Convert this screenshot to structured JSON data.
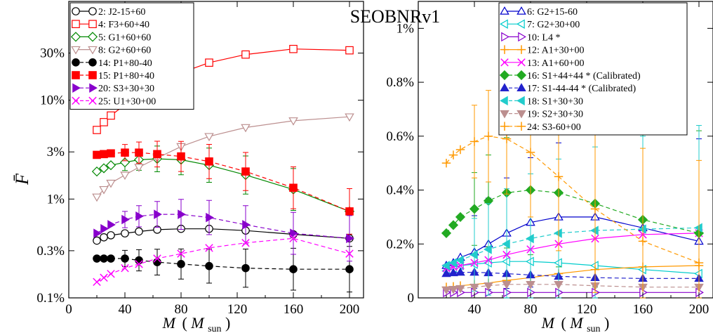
{
  "figure": {
    "title": "SEOBNRv1"
  },
  "chart_data": [
    {
      "type": "line",
      "panel": "left",
      "xlabel_main": "M",
      "xlabel_paren_open": "(",
      "xlabel_unit_main": "M",
      "xlabel_unit_sub": "sun",
      "xlabel_paren_close": ")",
      "ylabel": "F̄",
      "xlim": [
        0,
        210
      ],
      "ylim": [
        0.1,
        100
      ],
      "yscale": "log",
      "x_ticks": [
        "0",
        "40",
        "80",
        "120",
        "160",
        "200"
      ],
      "y_ticks": [
        "0.1%",
        "0.3%",
        "1%",
        "3%",
        "10%",
        "30%"
      ],
      "y_tick_values": [
        0.1,
        0.3,
        1,
        3,
        10,
        30
      ],
      "legend_position": "top-left",
      "series": [
        {
          "name": "2: J2-15+60",
          "color": "#000000",
          "marker": "circle-open",
          "dash": "solid",
          "x": [
            20,
            25,
            30,
            40,
            50,
            63,
            80,
            100,
            126,
            160,
            200
          ],
          "y": [
            0.38,
            0.41,
            0.43,
            0.45,
            0.47,
            0.49,
            0.5,
            0.5,
            0.48,
            0.44,
            0.4
          ]
        },
        {
          "name": "4: F3+60+40",
          "color": "#ff0000",
          "marker": "square-open",
          "dash": "solid",
          "x": [
            20,
            25,
            30,
            40,
            50,
            63,
            80,
            100,
            126,
            160,
            200
          ],
          "y": [
            5,
            6,
            7,
            9,
            11.5,
            14,
            19,
            24,
            29,
            33,
            32
          ]
        },
        {
          "name": "5: G1+60+60",
          "color": "#008800",
          "marker": "diamond-open",
          "dash": "solid",
          "x": [
            20,
            25,
            30,
            40,
            50,
            63,
            80,
            100,
            126,
            160,
            200
          ],
          "yerr": true,
          "y": [
            1.9,
            2.05,
            2.2,
            2.35,
            2.5,
            2.55,
            2.5,
            2.2,
            1.75,
            1.25,
            0.75
          ]
        },
        {
          "name": "8: G2+60+60",
          "color": "#bc8f8f",
          "marker": "triangle-down-open",
          "dash": "solid",
          "x": [
            20,
            25,
            30,
            40,
            50,
            63,
            80,
            100,
            126,
            160,
            200
          ],
          "y": [
            1.05,
            1.25,
            1.45,
            1.75,
            2.1,
            2.6,
            3.4,
            4.3,
            5.3,
            6.2,
            6.8
          ]
        },
        {
          "name": "14: P1+80-40",
          "color": "#000000",
          "marker": "circle-filled",
          "dash": "dashed",
          "x": [
            20,
            25,
            30,
            40,
            50,
            63,
            80,
            100,
            126,
            160,
            200
          ],
          "yerr": true,
          "y": [
            0.25,
            0.25,
            0.25,
            0.25,
            0.24,
            0.23,
            0.22,
            0.21,
            0.2,
            0.195,
            0.195
          ]
        },
        {
          "name": "15: P1+80+40",
          "color": "#ff0000",
          "marker": "square-filled",
          "dash": "dashed",
          "x": [
            20,
            25,
            30,
            40,
            50,
            63,
            80,
            100,
            126,
            160,
            200
          ],
          "yerr": true,
          "y": [
            2.8,
            2.85,
            2.9,
            2.95,
            2.95,
            2.85,
            2.7,
            2.4,
            1.9,
            1.3,
            0.75
          ]
        },
        {
          "name": "20: S3+30+30",
          "color": "#8800cc",
          "marker": "triangle-right-filled",
          "dash": "dashed",
          "x": [
            20,
            25,
            30,
            40,
            50,
            63,
            80,
            100,
            126,
            160,
            200
          ],
          "yerr": true,
          "y": [
            0.45,
            0.5,
            0.55,
            0.62,
            0.67,
            0.7,
            0.7,
            0.65,
            0.55,
            0.45,
            0.4
          ]
        },
        {
          "name": "25: U1+30+00",
          "color": "#ff00ff",
          "marker": "x",
          "dash": "dashed",
          "x": [
            20,
            25,
            30,
            40,
            50,
            63,
            80,
            100,
            126,
            160,
            200
          ],
          "y": [
            0.145,
            0.16,
            0.175,
            0.2,
            0.22,
            0.25,
            0.28,
            0.32,
            0.36,
            0.4,
            0.28
          ]
        }
      ]
    },
    {
      "type": "line",
      "panel": "right",
      "xlabel_main": "M",
      "xlabel_paren_open": "(",
      "xlabel_unit_main": "M",
      "xlabel_unit_sub": "sun",
      "xlabel_paren_close": ")",
      "xlim": [
        0,
        210
      ],
      "ylim": [
        0,
        1.1
      ],
      "yscale": "linear",
      "x_ticks": [
        "40",
        "80",
        "120",
        "160",
        "200"
      ],
      "y_ticks": [
        "0",
        "0.2%",
        "0.4%",
        "0.6%",
        "0.8%",
        "1%"
      ],
      "y_tick_values": [
        0,
        0.2,
        0.4,
        0.6,
        0.8,
        1.0
      ],
      "legend_position": "top-left",
      "series": [
        {
          "name": "6: G2+15-60",
          "color": "#0000cc",
          "marker": "triangle-up-open",
          "dash": "solid",
          "x": [
            20,
            25,
            30,
            40,
            50,
            63,
            80,
            100,
            126,
            160,
            200
          ],
          "yerr": true,
          "y": [
            0.12,
            0.13,
            0.15,
            0.17,
            0.2,
            0.24,
            0.28,
            0.3,
            0.3,
            0.26,
            0.21
          ]
        },
        {
          "name": "7: G2+30+00",
          "color": "#00cccc",
          "marker": "triangle-left-open",
          "dash": "solid",
          "x": [
            20,
            25,
            30,
            40,
            50,
            63,
            80,
            100,
            126,
            160,
            200
          ],
          "y": [
            0.1,
            0.11,
            0.12,
            0.125,
            0.13,
            0.135,
            0.135,
            0.13,
            0.12,
            0.105,
            0.09
          ]
        },
        {
          "name": "10: L4 *",
          "color": "#8800cc",
          "marker": "triangle-right-open",
          "dash": "solid",
          "x": [
            20,
            25,
            30,
            40,
            50,
            63,
            80,
            100,
            126,
            160,
            200
          ],
          "y": [
            0.02,
            0.02,
            0.02,
            0.02,
            0.02,
            0.02,
            0.02,
            0.02,
            0.02,
            0.02,
            0.02
          ]
        },
        {
          "name": "12: A1+30+00",
          "color": "#ff9900",
          "marker": "plus",
          "dash": "solid",
          "x": [
            20,
            25,
            30,
            40,
            50,
            63,
            80,
            100,
            126,
            160,
            200
          ],
          "y": [
            0.04,
            0.042,
            0.045,
            0.05,
            0.055,
            0.065,
            0.075,
            0.09,
            0.105,
            0.115,
            0.12
          ]
        },
        {
          "name": "13: A1+60+00",
          "color": "#ff00ff",
          "marker": "x",
          "dash": "solid",
          "x": [
            20,
            25,
            30,
            40,
            50,
            63,
            80,
            100,
            126,
            160,
            200
          ],
          "y": [
            0.11,
            0.115,
            0.12,
            0.13,
            0.14,
            0.16,
            0.18,
            0.2,
            0.22,
            0.235,
            0.24
          ]
        },
        {
          "name": "16: S1+44+44 *  (Calibrated)",
          "color": "#22aa22",
          "marker": "diamond-filled",
          "dash": "dashed",
          "x": [
            20,
            25,
            30,
            40,
            50,
            63,
            80,
            100,
            126,
            160,
            200
          ],
          "yerr": true,
          "y": [
            0.24,
            0.27,
            0.3,
            0.33,
            0.36,
            0.39,
            0.4,
            0.39,
            0.35,
            0.29,
            0.24
          ]
        },
        {
          "name": "17: S1-44-44 *   (Calibrated)",
          "color": "#2222cc",
          "marker": "triangle-up-filled",
          "dash": "dashed",
          "x": [
            20,
            25,
            30,
            40,
            50,
            63,
            80,
            100,
            126,
            160,
            200
          ],
          "y": [
            0.09,
            0.093,
            0.095,
            0.095,
            0.093,
            0.09,
            0.085,
            0.08,
            0.075,
            0.072,
            0.072
          ]
        },
        {
          "name": "18: S1+30+30",
          "color": "#22cccc",
          "marker": "triangle-left-filled",
          "dash": "dashed",
          "x": [
            20,
            25,
            30,
            40,
            50,
            63,
            80,
            100,
            126,
            160,
            200
          ],
          "yerr": true,
          "y": [
            0.12,
            0.13,
            0.14,
            0.16,
            0.18,
            0.2,
            0.22,
            0.24,
            0.25,
            0.255,
            0.26
          ]
        },
        {
          "name": "19: S2+30+30",
          "color": "#bc8f8f",
          "marker": "triangle-down-filled",
          "dash": "dashed",
          "x": [
            20,
            25,
            30,
            40,
            50,
            63,
            80,
            100,
            126,
            160,
            200
          ],
          "y": [
            0.03,
            0.032,
            0.035,
            0.04,
            0.045,
            0.05,
            0.05,
            0.05,
            0.045,
            0.04,
            0.04
          ]
        },
        {
          "name": "24: S3-60+00",
          "color": "#ff9900",
          "marker": "plus",
          "dash": "dashed",
          "x": [
            20,
            25,
            30,
            40,
            50,
            63,
            80,
            100,
            126,
            160,
            200
          ],
          "yerr": true,
          "y": [
            0.5,
            0.53,
            0.55,
            0.58,
            0.6,
            0.59,
            0.54,
            0.45,
            0.33,
            0.21,
            0.13
          ]
        }
      ]
    }
  ]
}
